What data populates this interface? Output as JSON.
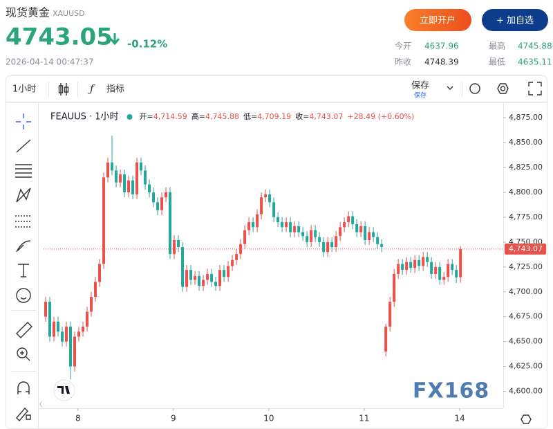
{
  "header": {
    "title": "现货黄金",
    "symbol": "XAUUSD",
    "price": "4743.05",
    "change": "-0.12%",
    "timestamp": "2026-04-14 00:47:37",
    "buttons": [
      "立即开户",
      "+ 加自选"
    ],
    "stats": [
      {
        "label": "今开",
        "value": "4637.96"
      },
      {
        "label": "最高",
        "value": "4745.88"
      },
      {
        "label": "昨收",
        "value": "4748.39"
      },
      {
        "label": "最低",
        "value": "4635.11"
      }
    ]
  },
  "toolbar": {
    "interval": "1小时",
    "indicators": "指标",
    "save": "保存",
    "save_hint": "保存"
  },
  "chart_data": {
    "type": "candlestick",
    "title": "FEAUUS · 1小时",
    "ohlc": [
      {
        "label": "开=",
        "value": "4,714.59"
      },
      {
        "label": "高=",
        "value": "4,745.88"
      },
      {
        "label": "低=",
        "value": "4,709.19"
      },
      {
        "label": "收=",
        "value": "4,743.07"
      }
    ],
    "change": "+28.49 (+0.60%)",
    "x": [
      0,
      1,
      2,
      3,
      4,
      5,
      6,
      7,
      8,
      9,
      10,
      11,
      12,
      13,
      14,
      15,
      16,
      17,
      18,
      19,
      20,
      21,
      22,
      23,
      24,
      25,
      26,
      27,
      28,
      29,
      30,
      31,
      32,
      33,
      34,
      35,
      36,
      37,
      38,
      39,
      40,
      41,
      42,
      43,
      44,
      45,
      46,
      47,
      48,
      49,
      50,
      51,
      52,
      53,
      54,
      55,
      56,
      57,
      58,
      59,
      60,
      61,
      62,
      63,
      64,
      65,
      66,
      67,
      68,
      69,
      70,
      71,
      72,
      73,
      74,
      75,
      76,
      77,
      78,
      79,
      80,
      81,
      82,
      83,
      84,
      85,
      86,
      87,
      88,
      89,
      90,
      91,
      92,
      93,
      94,
      95,
      96,
      97,
      98,
      99,
      100
    ],
    "open": [
      4675,
      4690,
      4655,
      4670,
      4660,
      4650,
      4665,
      4625,
      4655,
      4660,
      4665,
      4680,
      4695,
      4710,
      4728,
      4815,
      4830,
      4822,
      4810,
      4818,
      4800,
      4812,
      4798,
      4830,
      4822,
      4808,
      4800,
      4790,
      4782,
      4795,
      4800,
      4738,
      4752,
      4745,
      4705,
      4722,
      4712,
      4716,
      4706,
      4712,
      4718,
      4710,
      4706,
      4722,
      4715,
      4726,
      4732,
      4738,
      4748,
      4762,
      4770,
      4765,
      4778,
      4795,
      4798,
      4790,
      4775,
      4770,
      4765,
      4770,
      4760,
      4766,
      4760,
      4756,
      4750,
      4762,
      4755,
      4750,
      4740,
      4750,
      4745,
      4756,
      4765,
      4770,
      4776,
      4768,
      4760,
      4766,
      4752,
      4760,
      4755,
      4748,
      4640,
      4665,
      4690,
      4718,
      4728,
      4722,
      4730,
      4724,
      4732,
      4726,
      4735,
      4730,
      4718,
      4725,
      4712,
      4715,
      4728,
      4722,
      4714.59
    ],
    "high": [
      4695,
      4695,
      4675,
      4675,
      4665,
      4670,
      4670,
      4660,
      4665,
      4670,
      4685,
      4700,
      4715,
      4733,
      4820,
      4835,
      4857,
      4827,
      4823,
      4823,
      4817,
      4817,
      4835,
      4835,
      4827,
      4813,
      4805,
      4795,
      4800,
      4805,
      4805,
      4757,
      4757,
      4750,
      4727,
      4727,
      4721,
      4721,
      4717,
      4723,
      4723,
      4715,
      4727,
      4727,
      4731,
      4737,
      4743,
      4753,
      4767,
      4775,
      4775,
      4783,
      4800,
      4803,
      4803,
      4795,
      4780,
      4775,
      4775,
      4775,
      4771,
      4771,
      4765,
      4761,
      4767,
      4767,
      4760,
      4755,
      4755,
      4755,
      4761,
      4770,
      4775,
      4781,
      4781,
      4773,
      4771,
      4771,
      4765,
      4765,
      4760,
      4753,
      4668,
      4695,
      4723,
      4733,
      4733,
      4735,
      4735,
      4737,
      4737,
      4740,
      4740,
      4735,
      4730,
      4730,
      4720,
      4733,
      4733,
      4727,
      4745.88
    ],
    "low": [
      4670,
      4650,
      4650,
      4655,
      4645,
      4645,
      4612,
      4620,
      4650,
      4655,
      4660,
      4675,
      4690,
      4705,
      4723,
      4810,
      4817,
      4805,
      4805,
      4795,
      4795,
      4793,
      4793,
      4817,
      4803,
      4795,
      4785,
      4777,
      4777,
      4790,
      4733,
      4733,
      4740,
      4700,
      4700,
      4707,
      4707,
      4701,
      4701,
      4707,
      4705,
      4701,
      4701,
      4710,
      4710,
      4721,
      4727,
      4733,
      4743,
      4757,
      4760,
      4760,
      4773,
      4790,
      4785,
      4770,
      4765,
      4760,
      4760,
      4755,
      4755,
      4755,
      4751,
      4745,
      4745,
      4750,
      4745,
      4735,
      4735,
      4740,
      4740,
      4751,
      4760,
      4765,
      4763,
      4755,
      4755,
      4747,
      4747,
      4750,
      4743,
      4740,
      4635,
      4660,
      4685,
      4713,
      4717,
      4717,
      4719,
      4719,
      4721,
      4721,
      4725,
      4713,
      4713,
      4707,
      4707,
      4710,
      4717,
      4709,
      4709.19
    ],
    "close": [
      4690,
      4655,
      4670,
      4660,
      4650,
      4665,
      4625,
      4655,
      4660,
      4665,
      4680,
      4695,
      4710,
      4728,
      4815,
      4830,
      4822,
      4810,
      4818,
      4800,
      4812,
      4798,
      4830,
      4822,
      4808,
      4800,
      4790,
      4782,
      4795,
      4800,
      4738,
      4752,
      4745,
      4705,
      4722,
      4712,
      4716,
      4706,
      4712,
      4718,
      4710,
      4706,
      4722,
      4715,
      4726,
      4732,
      4738,
      4748,
      4762,
      4770,
      4765,
      4778,
      4795,
      4798,
      4790,
      4775,
      4770,
      4765,
      4770,
      4760,
      4766,
      4760,
      4756,
      4750,
      4762,
      4755,
      4750,
      4740,
      4750,
      4745,
      4756,
      4765,
      4770,
      4776,
      4768,
      4760,
      4766,
      4752,
      4760,
      4755,
      4748,
      4745,
      4665,
      4690,
      4718,
      4728,
      4722,
      4730,
      4724,
      4732,
      4726,
      4735,
      4730,
      4718,
      4725,
      4712,
      4715,
      4728,
      4722,
      4714.59,
      4743.07
    ],
    "up_color": "#e8514c",
    "down_color": "#26a69a",
    "xlim": [
      -0.5,
      110.3
    ],
    "xticks": [
      {
        "value": 7.8,
        "label": "8"
      },
      {
        "value": 30.8,
        "label": "9"
      },
      {
        "value": 53.8,
        "label": "10"
      },
      {
        "value": 76.8,
        "label": "11"
      },
      {
        "value": 99.8,
        "label": "14"
      }
    ],
    "ylim": [
      4583,
      4889
    ],
    "yticks": [
      {
        "value": 4600,
        "label": "4,600.00"
      },
      {
        "value": 4625,
        "label": "4,625.00"
      },
      {
        "value": 4650,
        "label": "4,650.00"
      },
      {
        "value": 4675,
        "label": "4,675.00"
      },
      {
        "value": 4700,
        "label": "4,700.00"
      },
      {
        "value": 4725,
        "label": "4,725.00"
      },
      {
        "value": 4750,
        "label": "4,750.00"
      },
      {
        "value": 4775,
        "label": "4,775.00"
      },
      {
        "value": 4800,
        "label": "4,800.00"
      },
      {
        "value": 4825,
        "label": "4,825.00"
      },
      {
        "value": 4850,
        "label": "4,850.00"
      },
      {
        "value": 4875,
        "label": "4,875.00"
      }
    ],
    "last_price": {
      "value": 4743.07,
      "label": "4,743.07"
    },
    "watermark": "FX168"
  }
}
